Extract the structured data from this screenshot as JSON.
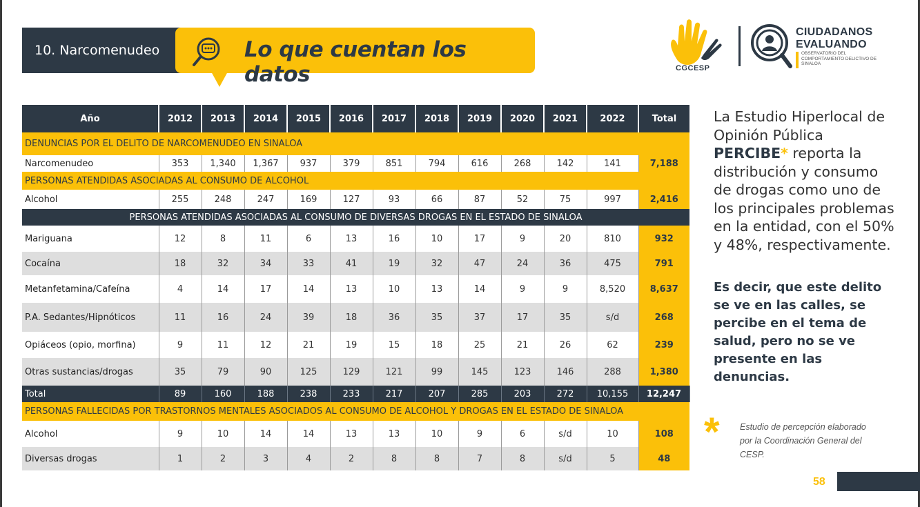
{
  "header": {
    "section": "10. Narcomenudeo",
    "title": "Lo que cuentan los datos"
  },
  "logos": {
    "cgcesp": "CGCESP",
    "ce_line1": "CIUDADANOS",
    "ce_line2": "EVALUANDO",
    "ce_sub": "OBSERVATORIO DEL COMPORTAMIENTO DELICTIVO DE SINALOA"
  },
  "table": {
    "headers": [
      "Año",
      "2012",
      "2013",
      "2014",
      "2015",
      "2016",
      "2017",
      "2018",
      "2019",
      "2020",
      "2021",
      "2022",
      "Total"
    ],
    "sec1": "DENUNCIAS POR EL DELITO DE NARCOMENUDEO EN SINALOA",
    "narco": [
      "Narcomenudeo",
      "353",
      "1,340",
      "1,367",
      "937",
      "379",
      "851",
      "794",
      "616",
      "268",
      "142",
      "141",
      "7,188"
    ],
    "sec2": "PERSONAS ATENDIDAS ASOCIADAS AL CONSUMO DE ALCOHOL",
    "alcohol": [
      "Alcohol",
      "255",
      "248",
      "247",
      "169",
      "127",
      "93",
      "66",
      "87",
      "52",
      "75",
      "997",
      "2,416"
    ],
    "sec3": "PERSONAS ATENDIDAS ASOCIADAS AL CONSUMO DE DIVERSAS DROGAS EN EL ESTADO DE SINALOA",
    "drugs": [
      [
        "Mariguana",
        "12",
        "8",
        "11",
        "6",
        "13",
        "16",
        "10",
        "17",
        "9",
        "20",
        "810",
        "932"
      ],
      [
        "Cocaína",
        "18",
        "32",
        "34",
        "33",
        "41",
        "19",
        "32",
        "47",
        "24",
        "36",
        "475",
        "791"
      ],
      [
        "Metanfetamina/Cafeína",
        "4",
        "14",
        "17",
        "14",
        "13",
        "10",
        "13",
        "14",
        "9",
        "9",
        "8,520",
        "8,637"
      ],
      [
        "P.A. Sedantes/Hipnóticos",
        "11",
        "16",
        "24",
        "39",
        "18",
        "36",
        "35",
        "37",
        "17",
        "35",
        "s/d",
        "268"
      ],
      [
        "Opiáceos (opio, morfina)",
        "9",
        "11",
        "12",
        "21",
        "19",
        "15",
        "18",
        "25",
        "21",
        "26",
        "62",
        "239"
      ],
      [
        "Otras sustancias/drogas",
        "35",
        "79",
        "90",
        "125",
        "129",
        "121",
        "99",
        "145",
        "123",
        "146",
        "288",
        "1,380"
      ]
    ],
    "total": [
      "Total",
      "89",
      "160",
      "188",
      "238",
      "233",
      "217",
      "207",
      "285",
      "203",
      "272",
      "10,155",
      "12,247"
    ],
    "sec4": "PERSONAS FALLECIDAS POR TRASTORNOS MENTALES ASOCIADOS AL CONSUMO DE ALCOHOL Y DROGAS EN EL ESTADO DE SINALOA",
    "deaths": [
      [
        "Alcohol",
        "9",
        "10",
        "14",
        "14",
        "13",
        "13",
        "10",
        "9",
        "6",
        "s/d",
        "10",
        "108"
      ],
      [
        "Diversas drogas",
        "1",
        "2",
        "3",
        "4",
        "2",
        "8",
        "8",
        "7",
        "8",
        "s/d",
        "5",
        "48"
      ]
    ]
  },
  "side": {
    "p1_a": "La Estudio Hiperlocal de Opinión Pública",
    "p1_b": "PERCIBE",
    "p1_star": "*",
    "p1_c": " reporta la distribución y consumo de drogas como uno de los principales problemas en la entidad, con el 50% y 48%, respectivamente.",
    "p2": "Es decir, que este delito se ve en las calles, se percibe en el tema de salud, pero no se ve presente en las denuncias.",
    "star": "*",
    "note": "Estudio de percepción elaborado por la Coordinación General del CESP."
  },
  "page": "58",
  "colors": {
    "yellow": "#fbc009",
    "navy": "#2d3945",
    "gray_row": "#dedede"
  }
}
